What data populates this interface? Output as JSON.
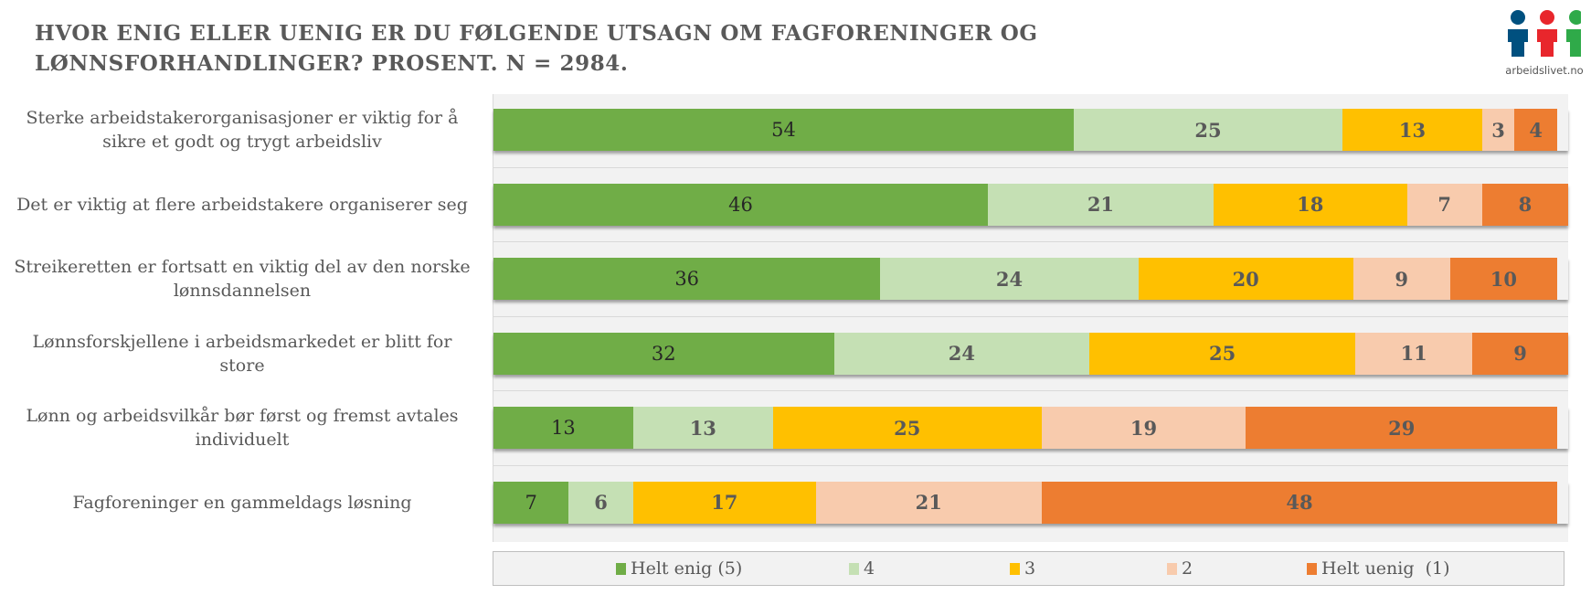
{
  "title": "HVOR ENIG ELLER UENIG ER DU FØLGENDE UTSAGN OM FAGFORENINGER OG LØNNSFORHANDLINGER? PROSENT. N = 2984.",
  "logo": {
    "text": "arbeidslivet.no",
    "icon": "three-people-icon",
    "colors": [
      "#00507f",
      "#e8262c",
      "#2faa49"
    ]
  },
  "chart_data": {
    "type": "bar",
    "orientation": "horizontal-stacked-100",
    "title": "HVOR ENIG ELLER UENIG ER DU FØLGENDE UTSAGN OM FAGFORENINGER OG LØNNSFORHANDLINGER? PROSENT. N = 2984.",
    "xlabel": "",
    "ylabel": "",
    "xlim": [
      0,
      100
    ],
    "grid": false,
    "legend_position": "bottom",
    "categories": [
      "Sterke arbeidstakerorganisasjoner er viktig for å sikre et godt og trygt arbeidsliv",
      "Det er viktig at flere arbeidstakere organiserer seg",
      "Streikeretten er fortsatt en viktig del av den norske lønnsdannelsen",
      "Lønnsforskjellene i arbeidsmarkedet er blitt for store",
      "Lønn og arbeidsvilkår bør først og fremst avtales individuelt",
      "Fagforeninger en gammeldags løsning"
    ],
    "series": [
      {
        "name": "Helt enig (5)",
        "color": "#70ad47",
        "values": [
          54,
          46,
          36,
          32,
          13,
          7
        ]
      },
      {
        "name": "4",
        "color": "#c5e0b4",
        "values": [
          25,
          21,
          24,
          24,
          13,
          6
        ]
      },
      {
        "name": "3",
        "color": "#ffc000",
        "values": [
          13,
          18,
          20,
          25,
          25,
          17
        ]
      },
      {
        "name": "2",
        "color": "#f8cbad",
        "values": [
          3,
          7,
          9,
          11,
          19,
          21
        ]
      },
      {
        "name": "Helt uenig  (1)",
        "color": "#ed7d31",
        "values": [
          4,
          8,
          10,
          9,
          29,
          48
        ]
      }
    ]
  }
}
